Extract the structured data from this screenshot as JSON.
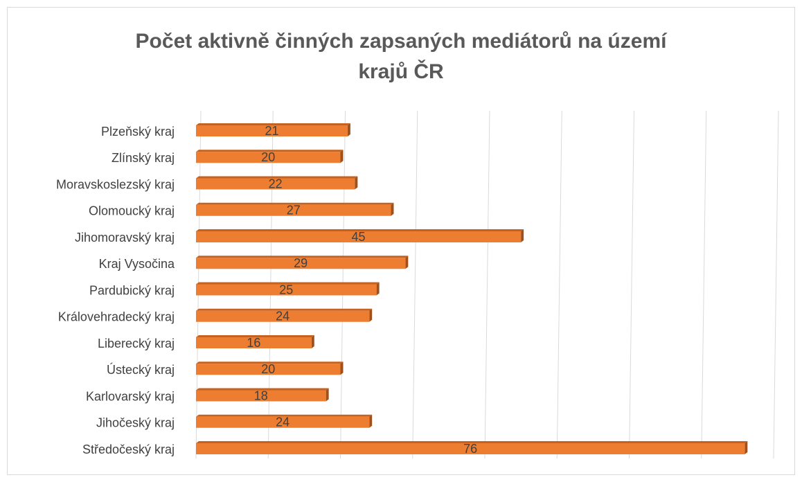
{
  "chart_data": {
    "type": "bar",
    "orientation": "horizontal",
    "title": "Počet aktivně činných zapsaných mediátorů na území krajů ČR",
    "categories": [
      "Plzeňský kraj",
      "Zlínský kraj",
      "Moravskoslezský kraj",
      "Olomoucký kraj",
      "Jihomoravský kraj",
      "Kraj Vysočina",
      "Pardubický kraj",
      "Královehradecký kraj",
      "Liberecký kraj",
      "Ústecký kraj",
      "Karlovarský kraj",
      "Jihočeský kraj",
      "Středočeský kraj"
    ],
    "values": [
      21,
      20,
      22,
      27,
      45,
      29,
      25,
      24,
      16,
      20,
      18,
      24,
      76
    ],
    "color": "#ed7d31",
    "xlim": [
      0,
      80
    ],
    "xticks": [
      0,
      10,
      20,
      30,
      40,
      50,
      60,
      70,
      80
    ],
    "grid": true
  }
}
